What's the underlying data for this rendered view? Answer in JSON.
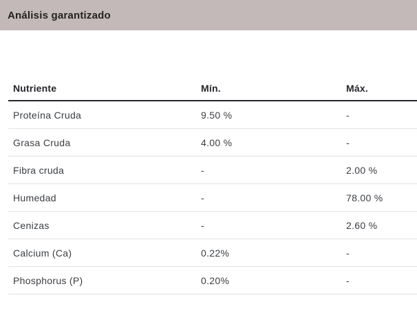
{
  "section": {
    "title": "Análisis garantizado"
  },
  "table": {
    "headers": [
      "Nutriente",
      "Mín.",
      "Máx."
    ],
    "rows": [
      {
        "nutrient": "Proteína Cruda",
        "min": "9.50 %",
        "max": "-"
      },
      {
        "nutrient": "Grasa Cruda",
        "min": "4.00 %",
        "max": "-"
      },
      {
        "nutrient": "Fibra cruda",
        "min": "-",
        "max": "2.00 %"
      },
      {
        "nutrient": "Humedad",
        "min": "-",
        "max": "78.00 %"
      },
      {
        "nutrient": "Cenizas",
        "min": "-",
        "max": "2.60 %"
      },
      {
        "nutrient": "Calcium (Ca)",
        "min": "0.22%",
        "max": "-"
      },
      {
        "nutrient": "Phosphorus (P)",
        "min": "0.20%",
        "max": "-"
      }
    ]
  },
  "colors": {
    "band_bg": "#c3b9b9",
    "title_text": "#222222",
    "header_rule": "#23262b",
    "row_divider": "#e2e2e2",
    "cell_text": "#3a3d42"
  }
}
